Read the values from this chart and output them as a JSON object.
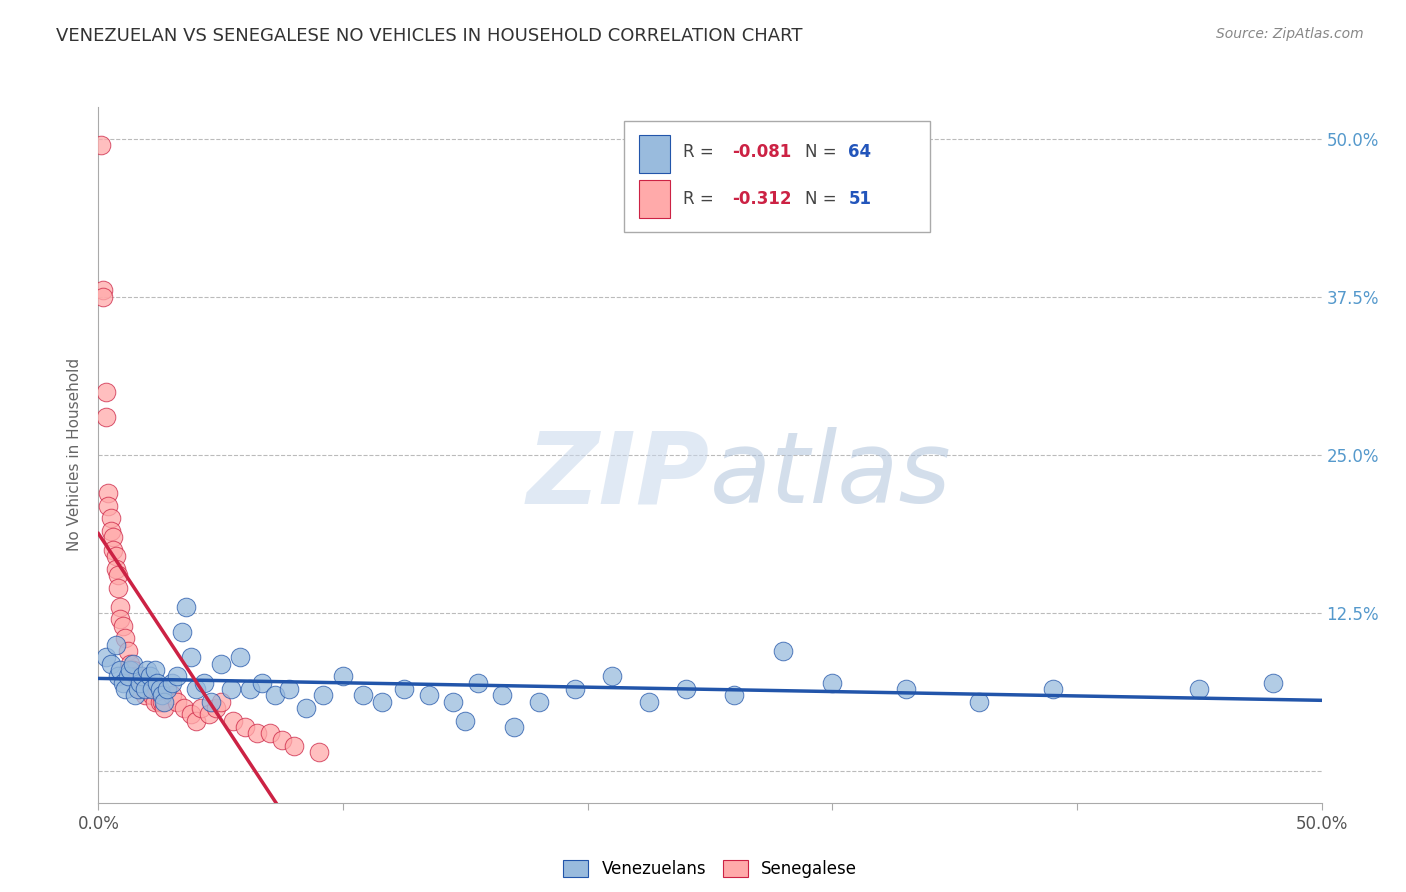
{
  "title": "VENEZUELAN VS SENEGALESE NO VEHICLES IN HOUSEHOLD CORRELATION CHART",
  "source": "Source: ZipAtlas.com",
  "ylabel": "No Vehicles in Household",
  "xmin": 0.0,
  "xmax": 0.5,
  "ymin": -0.025,
  "ymax": 0.525,
  "blue_color": "#99BBDD",
  "pink_color": "#FFAAAA",
  "trendline_blue_color": "#2255AA",
  "trendline_pink_color": "#CC2244",
  "background_color": "#FFFFFF",
  "grid_color": "#BBBBBB",
  "venezuelan_x": [
    0.003,
    0.005,
    0.007,
    0.008,
    0.009,
    0.01,
    0.011,
    0.012,
    0.013,
    0.014,
    0.015,
    0.016,
    0.017,
    0.018,
    0.019,
    0.02,
    0.021,
    0.022,
    0.023,
    0.024,
    0.025,
    0.026,
    0.027,
    0.028,
    0.03,
    0.032,
    0.034,
    0.036,
    0.038,
    0.04,
    0.043,
    0.046,
    0.05,
    0.054,
    0.058,
    0.062,
    0.067,
    0.072,
    0.078,
    0.085,
    0.092,
    0.1,
    0.108,
    0.116,
    0.125,
    0.135,
    0.145,
    0.155,
    0.165,
    0.18,
    0.195,
    0.21,
    0.225,
    0.24,
    0.26,
    0.28,
    0.3,
    0.33,
    0.36,
    0.39,
    0.15,
    0.17,
    0.45,
    0.48
  ],
  "venezuelan_y": [
    0.09,
    0.085,
    0.1,
    0.075,
    0.08,
    0.07,
    0.065,
    0.075,
    0.08,
    0.085,
    0.06,
    0.065,
    0.07,
    0.075,
    0.065,
    0.08,
    0.075,
    0.065,
    0.08,
    0.07,
    0.065,
    0.06,
    0.055,
    0.065,
    0.07,
    0.075,
    0.11,
    0.13,
    0.09,
    0.065,
    0.07,
    0.055,
    0.085,
    0.065,
    0.09,
    0.065,
    0.07,
    0.06,
    0.065,
    0.05,
    0.06,
    0.075,
    0.06,
    0.055,
    0.065,
    0.06,
    0.055,
    0.07,
    0.06,
    0.055,
    0.065,
    0.075,
    0.055,
    0.065,
    0.06,
    0.095,
    0.07,
    0.065,
    0.055,
    0.065,
    0.04,
    0.035,
    0.065,
    0.07
  ],
  "senegalese_x": [
    0.001,
    0.002,
    0.002,
    0.003,
    0.003,
    0.004,
    0.004,
    0.005,
    0.005,
    0.006,
    0.006,
    0.007,
    0.007,
    0.008,
    0.008,
    0.009,
    0.009,
    0.01,
    0.011,
    0.012,
    0.013,
    0.014,
    0.015,
    0.016,
    0.017,
    0.018,
    0.019,
    0.02,
    0.021,
    0.022,
    0.023,
    0.024,
    0.025,
    0.026,
    0.027,
    0.03,
    0.032,
    0.035,
    0.038,
    0.04,
    0.042,
    0.045,
    0.048,
    0.05,
    0.055,
    0.06,
    0.065,
    0.07,
    0.075,
    0.08,
    0.09
  ],
  "senegalese_y": [
    0.495,
    0.38,
    0.375,
    0.3,
    0.28,
    0.22,
    0.21,
    0.2,
    0.19,
    0.185,
    0.175,
    0.17,
    0.16,
    0.155,
    0.145,
    0.13,
    0.12,
    0.115,
    0.105,
    0.095,
    0.085,
    0.08,
    0.075,
    0.075,
    0.065,
    0.07,
    0.06,
    0.07,
    0.065,
    0.06,
    0.055,
    0.065,
    0.055,
    0.055,
    0.05,
    0.06,
    0.055,
    0.05,
    0.045,
    0.04,
    0.05,
    0.045,
    0.05,
    0.055,
    0.04,
    0.035,
    0.03,
    0.03,
    0.025,
    0.02,
    0.015
  ],
  "legend_blue_R": "-0.081",
  "legend_blue_N": "64",
  "legend_pink_R": "-0.312",
  "legend_pink_N": "51",
  "legend_blue_label": "Venezuelans",
  "legend_pink_label": "Senegalese"
}
